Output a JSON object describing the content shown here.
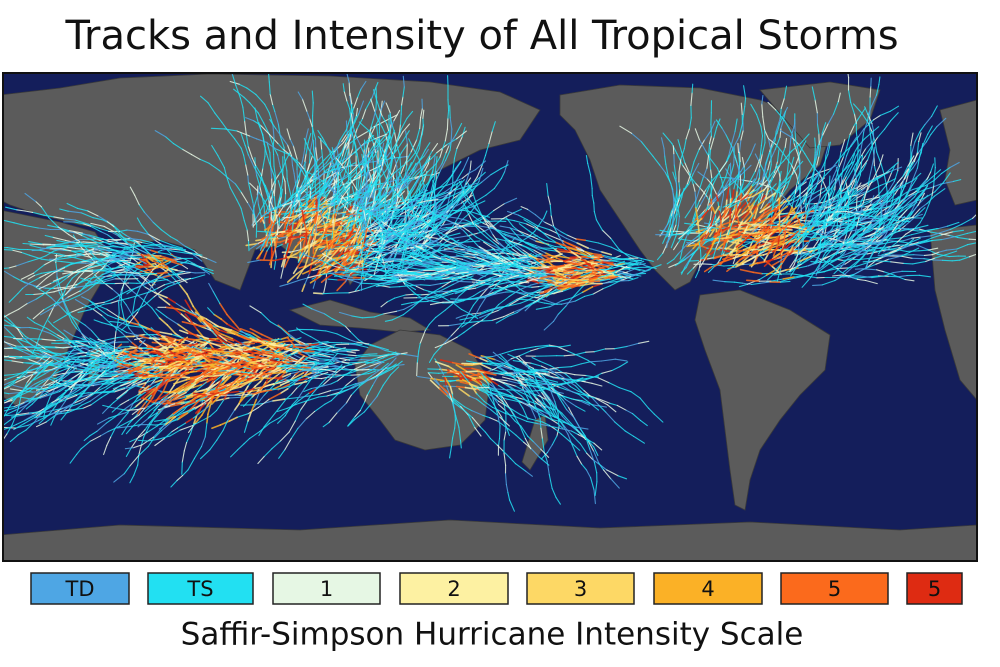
{
  "title": "Tracks and Intensity of All Tropical Storms",
  "legend": {
    "items": [
      {
        "label": "TD",
        "color": "#4ea6e4"
      },
      {
        "label": "TS",
        "color": "#22e0f2"
      },
      {
        "label": "1",
        "color": "#e6f7e4"
      },
      {
        "label": "2",
        "color": "#fdf1a2"
      },
      {
        "label": "3",
        "color": "#fdd865"
      },
      {
        "label": "4",
        "color": "#fbb126"
      },
      {
        "label": "5",
        "color": "#fb6a1c"
      },
      {
        "label": "5",
        "color": "#de2b12"
      }
    ],
    "caption": "Saffir-Simpson Hurricane Intensity Scale"
  }
}
